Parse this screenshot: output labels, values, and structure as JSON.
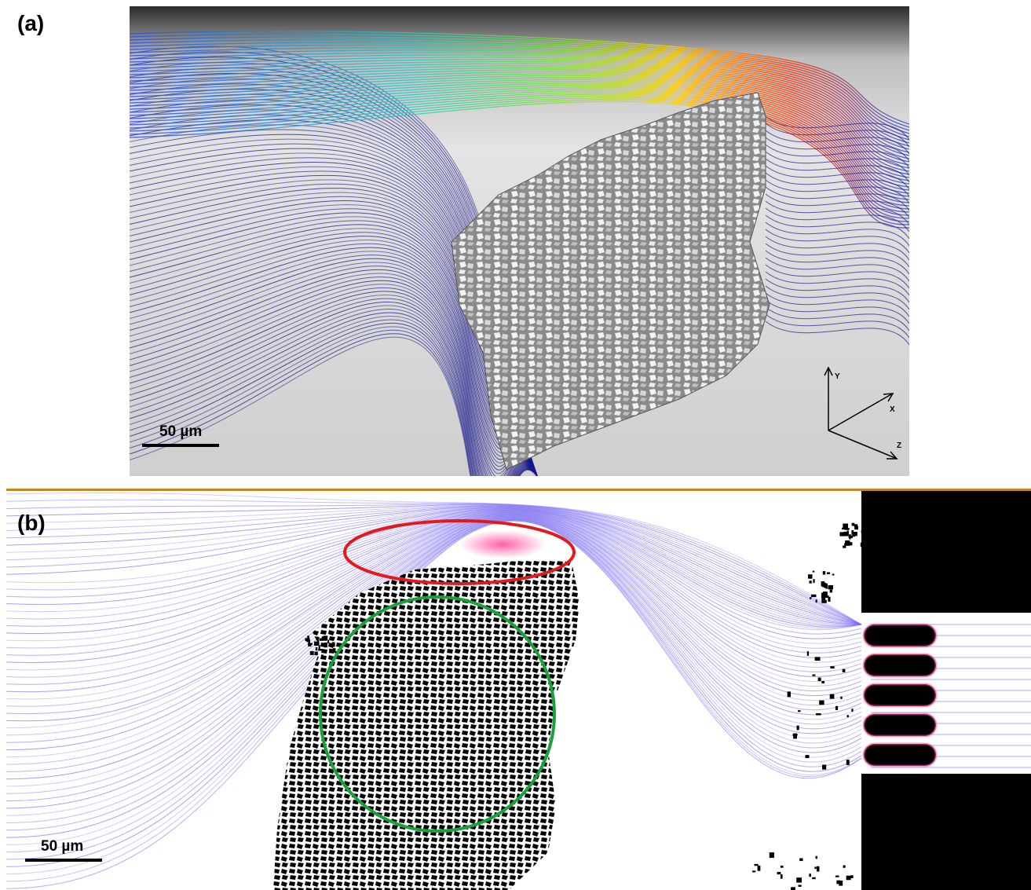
{
  "panels": [
    {
      "label": "(a)",
      "scale_bar": "50 µm",
      "axes": [
        "Y",
        "X",
        "Z"
      ]
    },
    {
      "label": "(b)",
      "scale_bar": "50 µm"
    }
  ],
  "colors": {
    "streamline_slow": "#1a1a8c",
    "streamline_fast": "#ff2a00",
    "flow_b": "#7a6cf0",
    "highlight_red": "#e11b1b",
    "highlight_green": "#18a33a"
  }
}
